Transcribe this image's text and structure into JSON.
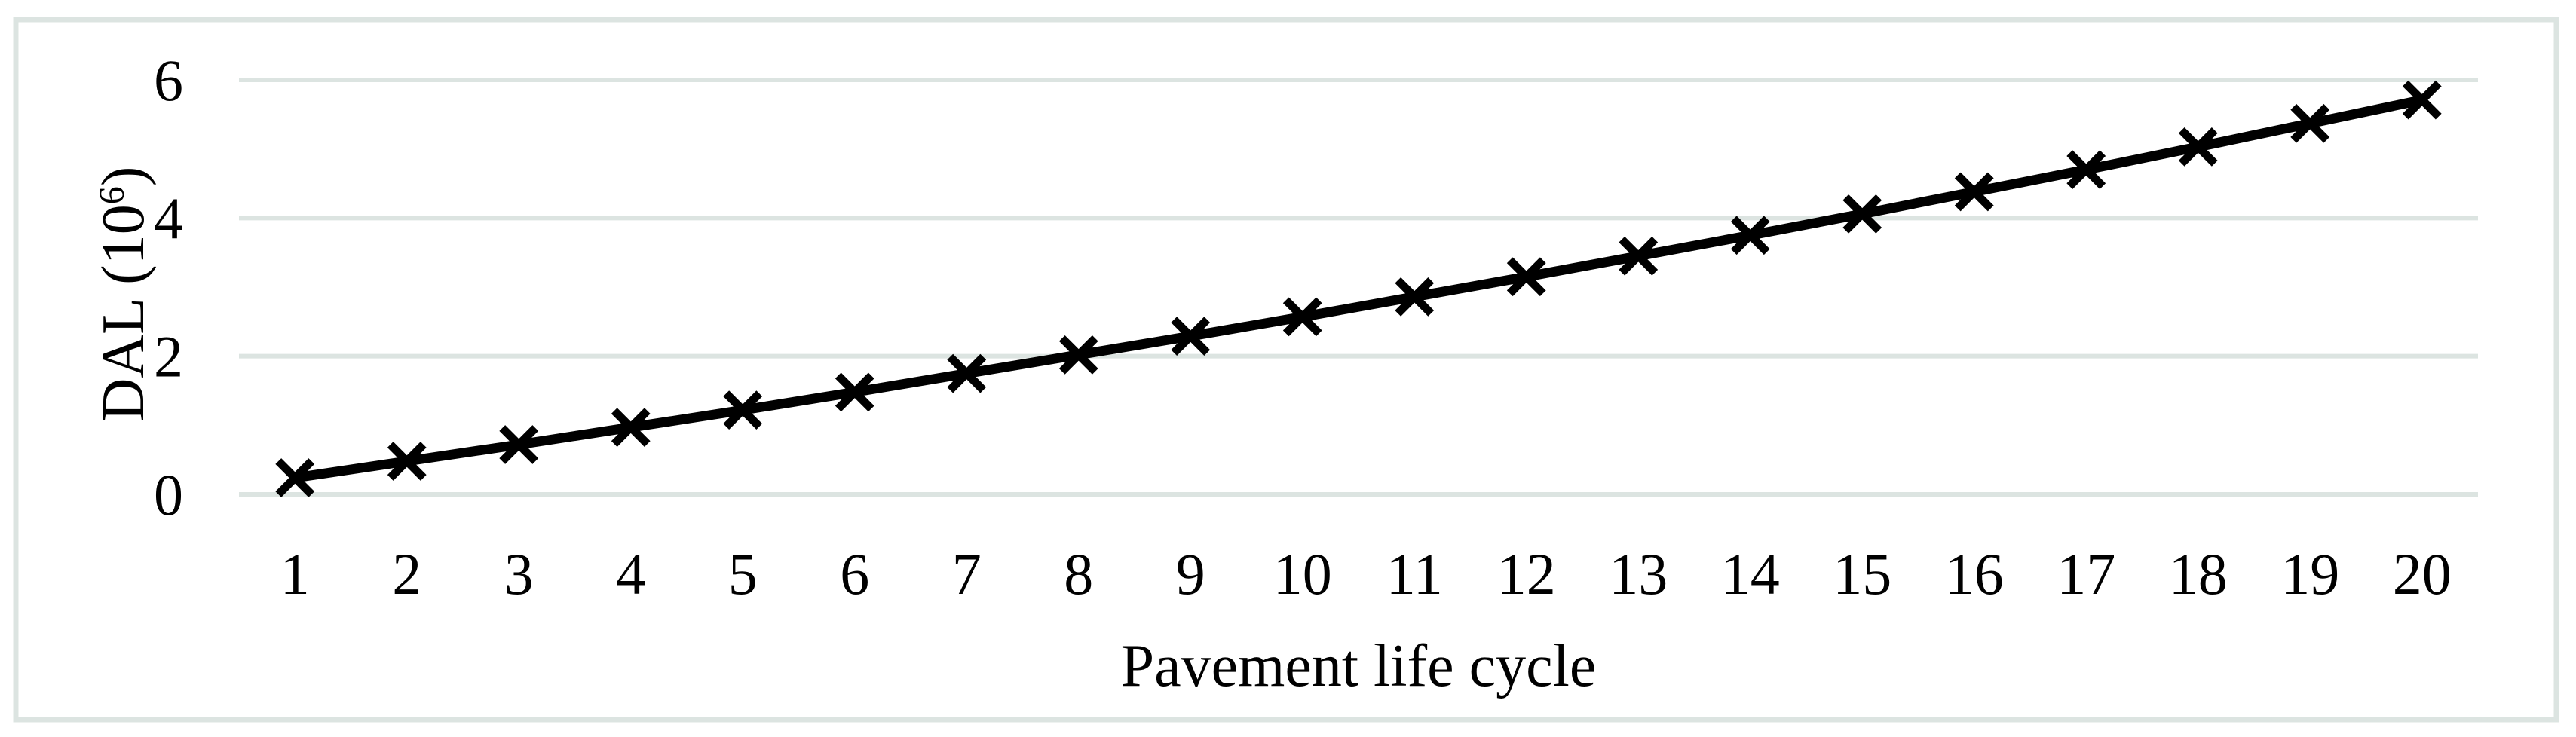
{
  "colors": {
    "background": "#ffffff",
    "frame": "#dce4e1",
    "gridline": "#dce4e1",
    "line": "#000000",
    "marker": "#000000",
    "text": "#000000"
  },
  "chart_data": {
    "type": "line",
    "xlabel": "Pavement life cycle",
    "ylabel": "DAL (10⁶)",
    "ylabel_parts": {
      "prefix": "DAL (10",
      "superscript": "6",
      "suffix": ")"
    },
    "categories": [
      "1",
      "2",
      "3",
      "4",
      "5",
      "6",
      "7",
      "8",
      "9",
      "10",
      "11",
      "12",
      "13",
      "14",
      "15",
      "16",
      "17",
      "18",
      "19",
      "20"
    ],
    "series": [
      {
        "name": "DAL",
        "values": [
          0.24,
          0.48,
          0.72,
          0.97,
          1.22,
          1.48,
          1.75,
          2.02,
          2.29,
          2.57,
          2.86,
          3.15,
          3.45,
          3.75,
          4.06,
          4.38,
          4.7,
          5.03,
          5.37,
          5.71
        ]
      }
    ],
    "y_ticks": [
      0,
      2,
      4,
      6
    ],
    "ylim": [
      0,
      6
    ],
    "grid": true,
    "legend": false,
    "marker_style": "x",
    "axis_lines": false
  }
}
